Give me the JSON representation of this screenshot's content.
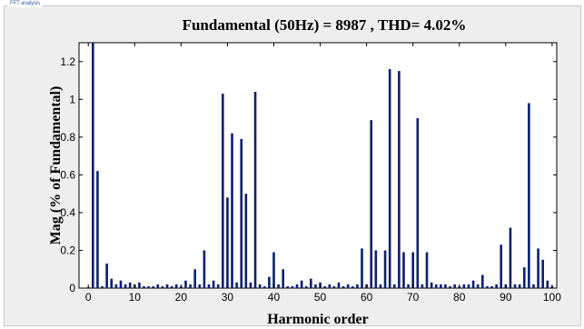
{
  "panel": {
    "label": "FFT analysis"
  },
  "chart_data": {
    "type": "bar",
    "title": "Fundamental (50Hz) = 8987 , THD= 4.02%",
    "xlabel": "Harmonic order",
    "ylabel": "Mag (% of Fundamental)",
    "xlim": [
      -2,
      101
    ],
    "ylim": [
      0,
      1.3
    ],
    "xticks": [
      0,
      10,
      20,
      30,
      40,
      50,
      60,
      70,
      80,
      90,
      100
    ],
    "yticks": [
      0,
      0.2,
      0.4,
      0.6,
      0.8,
      1,
      1.2
    ],
    "ytick_labels": [
      "0",
      "0.2",
      "0.4",
      "0.6",
      "0.8",
      "1",
      "1.2"
    ],
    "grid": false,
    "bar_color": "#0b1f6e",
    "clipped_bars": [
      1
    ],
    "x": [
      0,
      1,
      2,
      3,
      4,
      5,
      6,
      7,
      8,
      9,
      10,
      11,
      12,
      13,
      14,
      15,
      16,
      17,
      18,
      19,
      20,
      21,
      22,
      23,
      24,
      25,
      26,
      27,
      28,
      29,
      30,
      31,
      32,
      33,
      34,
      35,
      36,
      37,
      38,
      39,
      40,
      41,
      42,
      43,
      44,
      45,
      46,
      47,
      48,
      49,
      50,
      51,
      52,
      53,
      54,
      55,
      56,
      57,
      58,
      59,
      60,
      61,
      62,
      63,
      64,
      65,
      66,
      67,
      68,
      69,
      70,
      71,
      72,
      73,
      74,
      75,
      76,
      77,
      78,
      79,
      80,
      81,
      82,
      83,
      84,
      85,
      86,
      87,
      88,
      89,
      90,
      91,
      92,
      93,
      94,
      95,
      96,
      97,
      98,
      99,
      100
    ],
    "values": [
      0.005,
      1.3,
      0.62,
      0.01,
      0.13,
      0.05,
      0.02,
      0.04,
      0.02,
      0.03,
      0.02,
      0.03,
      0.01,
      0.01,
      0.01,
      0.02,
      0.01,
      0.02,
      0.01,
      0.02,
      0.01,
      0.04,
      0.02,
      0.1,
      0.02,
      0.2,
      0.02,
      0.04,
      0.02,
      1.03,
      0.48,
      0.82,
      0.03,
      0.79,
      0.5,
      0.03,
      1.04,
      0.02,
      0.01,
      0.06,
      0.19,
      0.02,
      0.1,
      0.01,
      0.01,
      0.02,
      0.04,
      0.01,
      0.05,
      0.02,
      0.03,
      0.01,
      0.02,
      0.01,
      0.03,
      0.01,
      0.02,
      0.01,
      0.02,
      0.21,
      0.02,
      0.89,
      0.2,
      0.02,
      0.2,
      1.16,
      0.02,
      1.15,
      0.19,
      0.02,
      0.19,
      0.9,
      0.02,
      0.19,
      0.03,
      0.02,
      0.02,
      0.02,
      0.01,
      0.02,
      0.01,
      0.02,
      0.02,
      0.04,
      0.02,
      0.07,
      0.01,
      0.01,
      0.02,
      0.23,
      0.02,
      0.32,
      0.02,
      0.02,
      0.11,
      0.98,
      0.02,
      0.21,
      0.15,
      0.04,
      0.01
    ]
  }
}
